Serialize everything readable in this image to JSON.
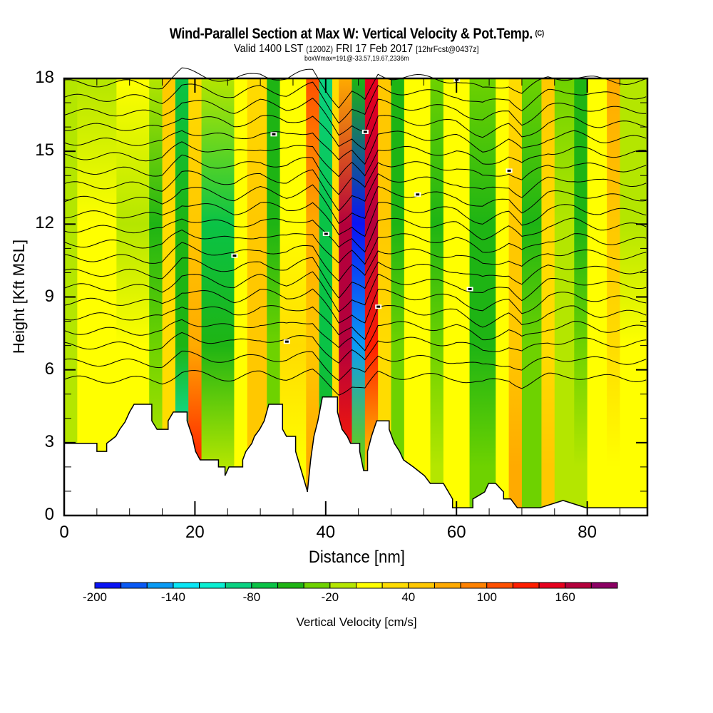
{
  "header": {
    "title": "Wind-Parallel Section at Max W: Vertical Velocity & Pot.Temp.",
    "copyright": "(C)",
    "valid_prefix": "Valid 1400 LST",
    "valid_utc": "(1200Z)",
    "valid_date": "FRI 17 Feb 2017",
    "forecast": "[12hrFcst@0437z]",
    "box_info": "boxWmax=191@-33.57,19.67,2336m"
  },
  "chart_data": {
    "type": "heatmap",
    "title": "Wind-Parallel Section at Max W: Vertical Velocity & Pot.Temp.",
    "xlabel": "Distance [nm]",
    "ylabel": "Height [Kft MSL]",
    "xlim": [
      0,
      89.2
    ],
    "ylim": [
      0,
      18
    ],
    "x_ticks": [
      0,
      20,
      40,
      60,
      80
    ],
    "x_tick_labels": [
      "0",
      "20",
      "40",
      "60",
      "80"
    ],
    "x_minor_step": 5,
    "y_ticks": [
      0,
      3,
      6,
      9,
      12,
      15,
      18
    ],
    "y_tick_labels": [
      "0",
      "3",
      "6",
      "9",
      "12",
      "15",
      "18"
    ],
    "y_minor_step": 1,
    "colorbar": {
      "label": "Vertical Velocity [cm/s]",
      "min": -200,
      "max": 200,
      "step": 20,
      "tick_values": [
        -200,
        -140,
        -80,
        -20,
        40,
        100,
        160
      ],
      "tick_labels": [
        "-200",
        "-140",
        "-80",
        "-20",
        "40",
        "100",
        "160"
      ],
      "colors": [
        "#0a14f5",
        "#0a5af5",
        "#0a9bf5",
        "#0ae6f5",
        "#0aefd2",
        "#0ad282",
        "#0ac346",
        "#1eb414",
        "#6ed200",
        "#b4e600",
        "#ffff00",
        "#ffdc00",
        "#ffc800",
        "#ffaa00",
        "#ff8200",
        "#ff5000",
        "#ff1e00",
        "#e6001e",
        "#b4003c",
        "#8c0064"
      ]
    },
    "field_heights_kft": [
      18,
      12,
      7,
      2
    ],
    "velocity_field": [
      {
        "x0": 0,
        "x1": 2,
        "w": [
          -20,
          -20,
          -10,
          -10
        ]
      },
      {
        "x0": 2,
        "x1": 8,
        "w": [
          -10,
          10,
          10,
          0
        ]
      },
      {
        "x0": 8,
        "x1": 13,
        "w": [
          0,
          -10,
          10,
          10
        ]
      },
      {
        "x0": 13,
        "x1": 15,
        "w": [
          -20,
          -50,
          -40,
          -20
        ]
      },
      {
        "x0": 15,
        "x1": 17,
        "w": [
          40,
          30,
          30,
          30
        ]
      },
      {
        "x0": 17,
        "x1": 19,
        "w": [
          -70,
          -60,
          -60,
          -110
        ]
      },
      {
        "x0": 19,
        "x1": 21,
        "w": [
          30,
          50,
          60,
          130
        ]
      },
      {
        "x0": 21,
        "x1": 26,
        "w": [
          -20,
          -70,
          -60,
          -20
        ]
      },
      {
        "x0": 26,
        "x1": 28,
        "w": [
          10,
          10,
          10,
          10
        ]
      },
      {
        "x0": 28,
        "x1": 31,
        "w": [
          30,
          40,
          40,
          50
        ]
      },
      {
        "x0": 31,
        "x1": 33,
        "w": [
          -50,
          -50,
          -40,
          -30
        ]
      },
      {
        "x0": 33,
        "x1": 37,
        "w": [
          10,
          10,
          20,
          10
        ]
      },
      {
        "x0": 37,
        "x1": 39,
        "w": [
          110,
          70,
          50,
          60
        ]
      },
      {
        "x0": 39,
        "x1": 41,
        "w": [
          -100,
          -80,
          -70,
          -60
        ]
      },
      {
        "x0": 41,
        "x1": 42,
        "w": [
          20,
          30,
          30,
          20
        ]
      },
      {
        "x0": 42,
        "x1": 44,
        "w": [
          60,
          170,
          160,
          120
        ]
      },
      {
        "x0": 44,
        "x1": 46,
        "w": [
          -60,
          -190,
          -160,
          -30
        ]
      },
      {
        "x0": 46,
        "x1": 48,
        "w": [
          140,
          170,
          120,
          40
        ]
      },
      {
        "x0": 48,
        "x1": 50,
        "w": [
          40,
          40,
          30,
          20
        ]
      },
      {
        "x0": 50,
        "x1": 52,
        "w": [
          -50,
          -50,
          -40,
          -30
        ]
      },
      {
        "x0": 52,
        "x1": 56,
        "w": [
          10,
          10,
          10,
          10
        ]
      },
      {
        "x0": 56,
        "x1": 58,
        "w": [
          -40,
          -50,
          -30,
          -20
        ]
      },
      {
        "x0": 58,
        "x1": 62,
        "w": [
          0,
          10,
          10,
          10
        ]
      },
      {
        "x0": 62,
        "x1": 66,
        "w": [
          -40,
          -60,
          -50,
          -30
        ]
      },
      {
        "x0": 66,
        "x1": 68,
        "w": [
          10,
          10,
          10,
          0
        ]
      },
      {
        "x0": 68,
        "x1": 70,
        "w": [
          30,
          40,
          50,
          70
        ]
      },
      {
        "x0": 70,
        "x1": 73,
        "w": [
          -40,
          -50,
          -40,
          -30
        ]
      },
      {
        "x0": 73,
        "x1": 75,
        "w": [
          40,
          30,
          30,
          50
        ]
      },
      {
        "x0": 75,
        "x1": 78,
        "w": [
          -30,
          -20,
          -20,
          -20
        ]
      },
      {
        "x0": 78,
        "x1": 80,
        "w": [
          -60,
          -50,
          -40,
          -20
        ]
      },
      {
        "x0": 80,
        "x1": 83,
        "w": [
          10,
          10,
          10,
          10
        ]
      },
      {
        "x0": 83,
        "x1": 85,
        "w": [
          70,
          50,
          30,
          10
        ]
      },
      {
        "x0": 85,
        "x1": 89.2,
        "w": [
          -20,
          -10,
          0,
          0
        ]
      }
    ],
    "isentrope_base_heights_kft": [
      5.6,
      6.3,
      7.0,
      7.6,
      8.2,
      8.8,
      9.4,
      10.0,
      10.6,
      11.2,
      11.8,
      12.4,
      13.0,
      13.6,
      14.2,
      14.8,
      15.4,
      16.0,
      16.6,
      17.2,
      17.8
    ],
    "isentrope_displacement": {
      "x": [
        0,
        10,
        15,
        18,
        22,
        26,
        30,
        34,
        38,
        40,
        42,
        44,
        46,
        48,
        50,
        55,
        60,
        64,
        68,
        70,
        74,
        78,
        82,
        89.2
      ],
      "dz_kft": [
        0,
        0,
        -0.1,
        0.5,
        0.3,
        0.1,
        0.4,
        0.2,
        0.5,
        -0.2,
        -0.9,
        -0.4,
        -0.8,
        0.4,
        0.3,
        0.2,
        0.15,
        -0.3,
        0.0,
        -0.4,
        0.2,
        0.3,
        0.1,
        0.1
      ]
    },
    "terrain": {
      "x_nm": [
        0,
        5.0,
        5.0,
        6.5,
        6.5,
        7.9,
        8.5,
        9.3,
        10.0,
        10.7,
        13.4,
        13.4,
        14.2,
        15.9,
        15.9,
        16.7,
        18.8,
        18.8,
        19.6,
        20.1,
        20.8,
        21.8,
        23.6,
        23.6,
        24.6,
        24.6,
        25.2,
        27.3,
        27.3,
        27.8,
        28.7,
        29.1,
        29.9,
        30.6,
        31.3,
        31.8,
        33.4,
        33.4,
        34.0,
        35.4,
        35.4,
        37.2,
        37.2,
        37.7,
        38.2,
        38.8,
        39.5,
        40.0,
        41.8,
        41.8,
        42.5,
        43.3,
        43.8,
        45.2,
        45.2,
        45.8,
        46.4,
        46.4,
        47.0,
        47.8,
        49.7,
        49.7,
        50.5,
        51.3,
        51.9,
        53.4,
        55.1,
        56.0,
        58.0,
        59.4,
        59.4,
        60.0,
        62.5,
        62.5,
        64.3,
        64.9,
        66.0,
        67.2,
        67.2,
        68.3,
        69.3,
        70.7,
        70.7,
        72.8,
        76.3,
        76.3,
        79.8,
        79.8,
        89.2
      ],
      "h_kft": [
        2.97,
        2.97,
        2.64,
        2.64,
        2.97,
        3.26,
        3.55,
        3.85,
        4.26,
        4.58,
        4.58,
        3.9,
        3.55,
        3.55,
        3.9,
        4.26,
        4.26,
        3.9,
        3.26,
        2.64,
        2.29,
        2.29,
        2.29,
        2.0,
        2.0,
        1.64,
        2.0,
        2.0,
        2.29,
        2.64,
        2.97,
        3.26,
        3.55,
        3.9,
        4.58,
        4.58,
        4.58,
        3.55,
        3.26,
        3.26,
        2.64,
        1.0,
        0.97,
        2.29,
        3.26,
        3.9,
        4.88,
        4.88,
        4.88,
        4.26,
        3.55,
        3.26,
        2.97,
        2.97,
        2.64,
        1.85,
        1.85,
        2.64,
        3.26,
        3.9,
        3.9,
        3.55,
        2.97,
        2.64,
        2.29,
        2.0,
        1.64,
        1.32,
        1.32,
        0.68,
        0.32,
        0.32,
        0.32,
        0.68,
        0.97,
        1.32,
        1.32,
        0.97,
        0.68,
        0.68,
        0.32,
        0.32,
        0.32,
        0.32,
        0.62,
        0.62,
        0.32,
        0.32,
        0.32
      ]
    }
  }
}
